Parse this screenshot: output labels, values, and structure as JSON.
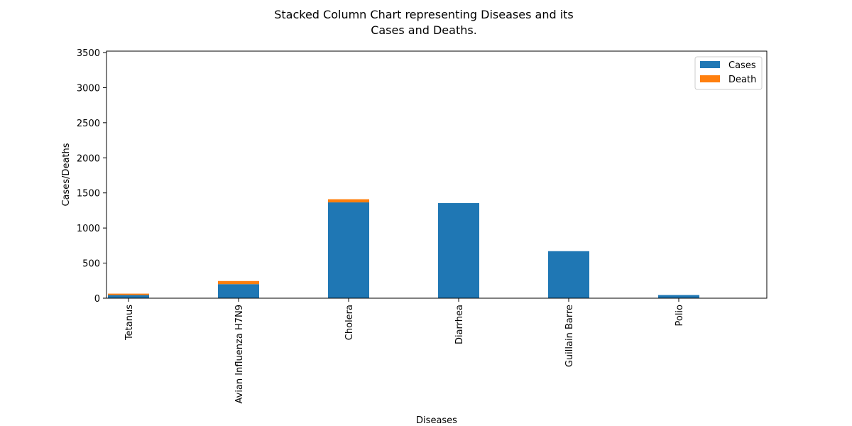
{
  "chart_data": {
    "type": "bar",
    "stacked": true,
    "title_line1": "Stacked Column Chart representing Diseases and its",
    "title_line2": "Cases and Deaths.",
    "xlabel": "Diseases",
    "ylabel": "Cases/Deaths",
    "categories": [
      "Tetanus",
      "Avian Influenza H7N9",
      "Cholera",
      "Diarrhea",
      "Guillain Barre",
      "Polio"
    ],
    "series": [
      {
        "name": "Cases",
        "color": "#1f77b4",
        "values": [
          45,
          200,
          1365,
          1355,
          670,
          45
        ]
      },
      {
        "name": "Death",
        "color": "#ff7f0e",
        "values": [
          20,
          45,
          45,
          0,
          0,
          0
        ]
      }
    ],
    "ylim": [
      0,
      3520
    ],
    "yticks": [
      0,
      500,
      1000,
      1500,
      2000,
      2500,
      3000,
      3500
    ],
    "legend_position": "top-right",
    "grid": false
  }
}
